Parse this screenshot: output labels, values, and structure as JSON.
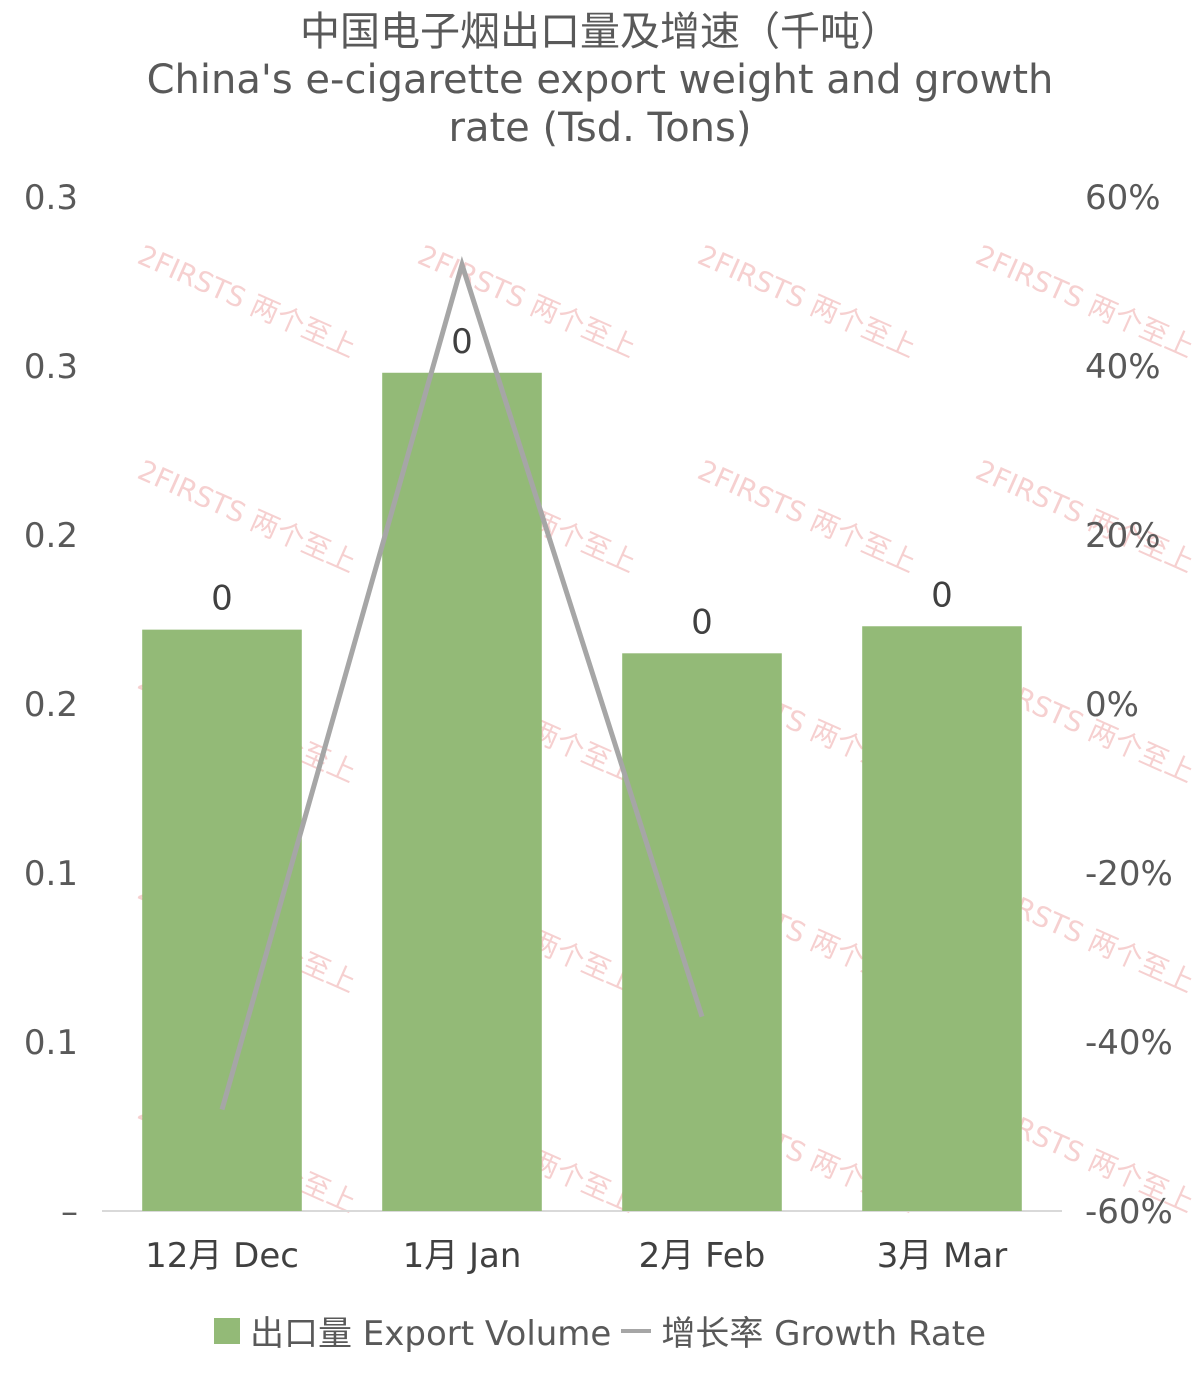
{
  "title": {
    "line1": "中国电子烟出口量及增速（千吨）",
    "line2": "China's e-cigarette export weight and growth",
    "line3": "rate (Tsd. Tons)"
  },
  "watermark": "2FIRSTS 两个至上",
  "colors": {
    "bar": "#93ba77",
    "line": "#a6a6a6",
    "axis": "#d9d9d9"
  },
  "chart_data": {
    "type": "bar",
    "categories": [
      "12月 Dec",
      "1月 Jan",
      "2月 Feb",
      "3月 Mar"
    ],
    "series": [
      {
        "name": "出口量 Export Volume",
        "type": "bar",
        "axis": "left",
        "values": [
          0.172,
          0.248,
          0.165,
          0.173
        ],
        "data_labels": [
          "0",
          "0",
          "0",
          "0"
        ]
      },
      {
        "name": "增长率 Growth Rate",
        "type": "line",
        "axis": "right",
        "values": [
          -48,
          52,
          -37,
          null
        ]
      }
    ],
    "y_left": {
      "ylim": [
        0,
        0.3
      ],
      "tick_labels": [
        "–",
        "0.1",
        "0.1",
        "0.2",
        "0.2",
        "0.3",
        "0.3"
      ]
    },
    "y_right": {
      "ylim": [
        -60,
        60
      ],
      "tick_labels": [
        "-60%",
        "-40%",
        "-20%",
        "0%",
        "20%",
        "40%",
        "60%"
      ]
    },
    "legend": "bottom",
    "grid": false
  }
}
